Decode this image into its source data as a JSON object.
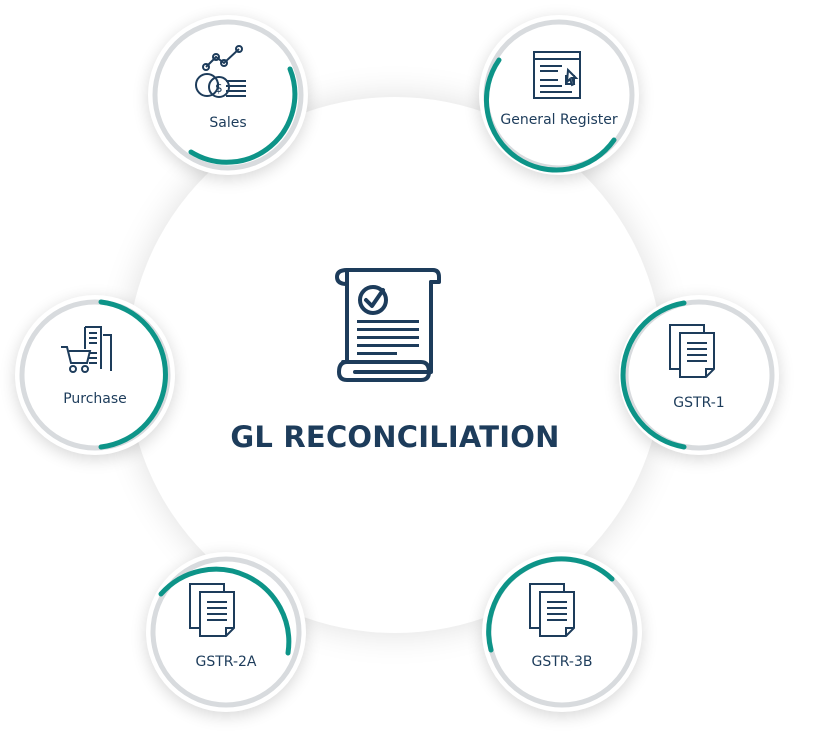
{
  "center": {
    "title": "GL RECONCILIATION",
    "icon": "checklist-document-icon"
  },
  "nodes": [
    {
      "label": "Sales",
      "icon": "sales-chart-coins-icon"
    },
    {
      "label": "General Register",
      "icon": "register-window-icon"
    },
    {
      "label": "Purchase",
      "icon": "shopping-cart-receipt-icon"
    },
    {
      "label": "GSTR-1",
      "icon": "documents-icon"
    },
    {
      "label": "GSTR-2A",
      "icon": "documents-icon"
    },
    {
      "label": "GSTR-3B",
      "icon": "documents-icon"
    }
  ],
  "colors": {
    "accent": "#0d9488",
    "navy": "#1d3c5b",
    "ring_gray": "#d8dbde"
  }
}
